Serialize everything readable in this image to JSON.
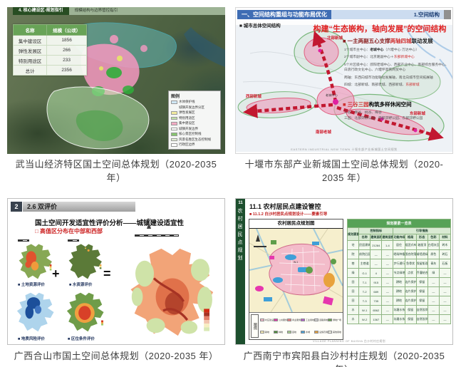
{
  "common": {
    "north": "N"
  },
  "captions": {
    "wudangshan": "武当山经济特区国土空间总体规划（2020-2035 年）",
    "shiyan": "十堰市东部产业新城国土空间总体规划（2020-2035 年）",
    "heshan": "广西合山市国土空间总体规划（2020-2035 年）",
    "baisha": "广西南宁市宾阳县白沙村村庄规划（2020-2035 年）"
  },
  "wudangshan": {
    "header": {
      "tab1": "4. 核心建设区-规划指引",
      "tab2": "规模结构与边界管控指引"
    },
    "table": {
      "headers": [
        "名称",
        "规模（公顷）"
      ],
      "rows": [
        [
          "集中建设区",
          "1856"
        ],
        [
          "弹性发展区",
          "266"
        ],
        [
          "特别用途区",
          "233"
        ],
        [
          "总计",
          "2356"
        ]
      ]
    },
    "legend": {
      "title": "图例",
      "items": [
        {
          "label": "水体保护线",
          "color": "#cfe8f5"
        },
        {
          "label": "城镇开发边界分区",
          "color": "transparent"
        },
        {
          "label": "弹性发展区",
          "color": "#f2eb9e"
        },
        {
          "label": "特别用途区",
          "color": "#bfe0a6"
        },
        {
          "label": "集中建设区",
          "color": "#f2aac2"
        },
        {
          "label": "城镇开发边界",
          "color": "#ffffff"
        },
        {
          "label": "核心景区控制线",
          "color": "#86c46e"
        },
        {
          "label": "风景名胜区生态控制线",
          "color": "#e2f0d4"
        },
        {
          "label": "行政区边界",
          "color": "#ffffff"
        }
      ]
    }
  },
  "shiyan": {
    "bar": {
      "title": "一、空间结构重组与功能布局优化",
      "right": "1.空间结构"
    },
    "sub_label": "■ 城市总体空间结构",
    "headline": "构建“生态嵌构，轴向发展”的空间结构",
    "bullet1": {
      "b1": "■ 一主两副五心支撑",
      "b2": "两轴四城",
      "b3": "联动发展"
    },
    "lines": {
      "l1": {
        "pre": "1个城市主中心：",
        "em": "老城中心",
        "post": "（六堰中心·万达中心）"
      },
      "l2": {
        "pre": "2个城市副中心：北京路副中心＋",
        "red": "东部新城中心"
      },
      "l3": "5个片区级中心：郧阳老城中心、西部产业中心、南部综合服务中心、白浪行政文化中心、六堰坪高铁商贸中心",
      "l4": "两轴：东西向城市功能联动发展轴，南北向城市空间拓展轴",
      "l5": {
        "pre": "四城：北部新城、南部老城、西部新城、",
        "red": "东部新城"
      }
    },
    "bullet2": {
      "red": "■ 三谷三园",
      "rest": "构筑多样休闲空间"
    },
    "valleys": "三谷：柳谷、桃谷、梅谷",
    "parks": "三园：北部郊野公园、南部郊野公园、东部郊野公园",
    "footer": "EASTERN INDUSTRIAL NEW TOWN 十堰东部产业新城国土空间规划",
    "map": {
      "north": "北部新城",
      "west": "西部新城",
      "south": "南部老城",
      "east": "东部新城",
      "center": "老城中心"
    }
  },
  "heshan": {
    "no": "2",
    "bar": "2.6 双评价",
    "heading": "国土空间开发适宜性评价分析——城镇建设适宜性",
    "sub_red": "□ 高值区分布在中部和西部",
    "plus": "+",
    "equals": "=",
    "maps": [
      {
        "label": "■ 土地资源评价"
      },
      {
        "label": "■ 水资源评价"
      },
      {
        "label": "■ 地质风险评价"
      },
      {
        "label": "■ 区位条件评价"
      }
    ]
  },
  "baisha": {
    "sidebar": {
      "no": "11",
      "chars": "农村居民点规划"
    },
    "title": "11.1 农村居民点建设管控",
    "sub_red": "■ 11.1.2 白沙村居民点规划设计——要素引导",
    "map_title": "农村居民点规划图",
    "map_label": "W-1",
    "legend": {
      "title": "图例",
      "items": [
        {
          "label": "村庄建设用地",
          "color": "#f3bcca"
        },
        {
          "label": "公共服务设施用地",
          "color": "#e637ae"
        },
        {
          "label": "商业服务业用地",
          "color": "#f08080"
        },
        {
          "label": "工业用地",
          "color": "#b45fd0"
        },
        {
          "label": "道路用地",
          "color": "#d8d8d8"
        },
        {
          "label": "绿地广场",
          "color": "#6aa84f"
        },
        {
          "label": "耕地",
          "color": "#f7edb5"
        },
        {
          "label": "林地",
          "color": "#4e8f3a"
        },
        {
          "label": "园地",
          "color": "#a8d08d"
        },
        {
          "label": "水域",
          "color": "#4aa3d8"
        },
        {
          "label": "设施农用地",
          "color": "#e8a23c"
        },
        {
          "label": "其他用地",
          "color": "#f0f0e0"
        }
      ]
    },
    "table": {
      "title": "规划要素一览表",
      "col_element": "规划要素",
      "col_control": "控制指标",
      "col_guide": "引导措施",
      "headers": [
        "名称",
        "建筑面积（平方米）",
        "建筑层数（层）",
        "功能布局",
        "格局",
        "形态",
        "色彩",
        "材料"
      ],
      "rows": [
        [
          "宅",
          "民居建筑",
          "21284",
          "1-4",
          "居住",
          "组团式布局",
          "坡屋顶",
          "白墙灰瓦",
          "砖木"
        ],
        [
          "院",
          "前院后园",
          "—",
          "—",
          "晒场种植",
          "围合院落",
          "矮墙透绿",
          "原色",
          "砖石"
        ],
        [
          "巷",
          "主巷道",
          "—",
          "—",
          "步行通行",
          "鱼骨状",
          "保留肌理",
          "青灰",
          "石板"
        ],
        [
          "绿",
          "G-1",
          "4",
          "—",
          "节点绿地",
          "点状",
          "乔灌结合",
          "绿",
          "—"
        ],
        [
          "田",
          "T-1",
          "915",
          "—",
          "耕地",
          "连片保护",
          "保留",
          "—",
          "—"
        ],
        [
          "田",
          "T-2",
          "689",
          "—",
          "耕地",
          "连片保护",
          "保留",
          "—",
          "—"
        ],
        [
          "田",
          "T-3",
          "735",
          "—",
          "耕地",
          "连片保护",
          "保留",
          "—",
          "—"
        ],
        [
          "水",
          "W-1",
          "6562",
          "—",
          "坑塘水系",
          "保留",
          "自然驳岸",
          "—",
          "—"
        ],
        [
          "水",
          "W-2",
          "1367",
          "—",
          "坑塘水系",
          "保留",
          "自然驳岸",
          "—",
          "—"
        ]
      ]
    },
    "footer": "VILLAGE PLANNING OF BAISHA 白沙村村庄规划"
  }
}
